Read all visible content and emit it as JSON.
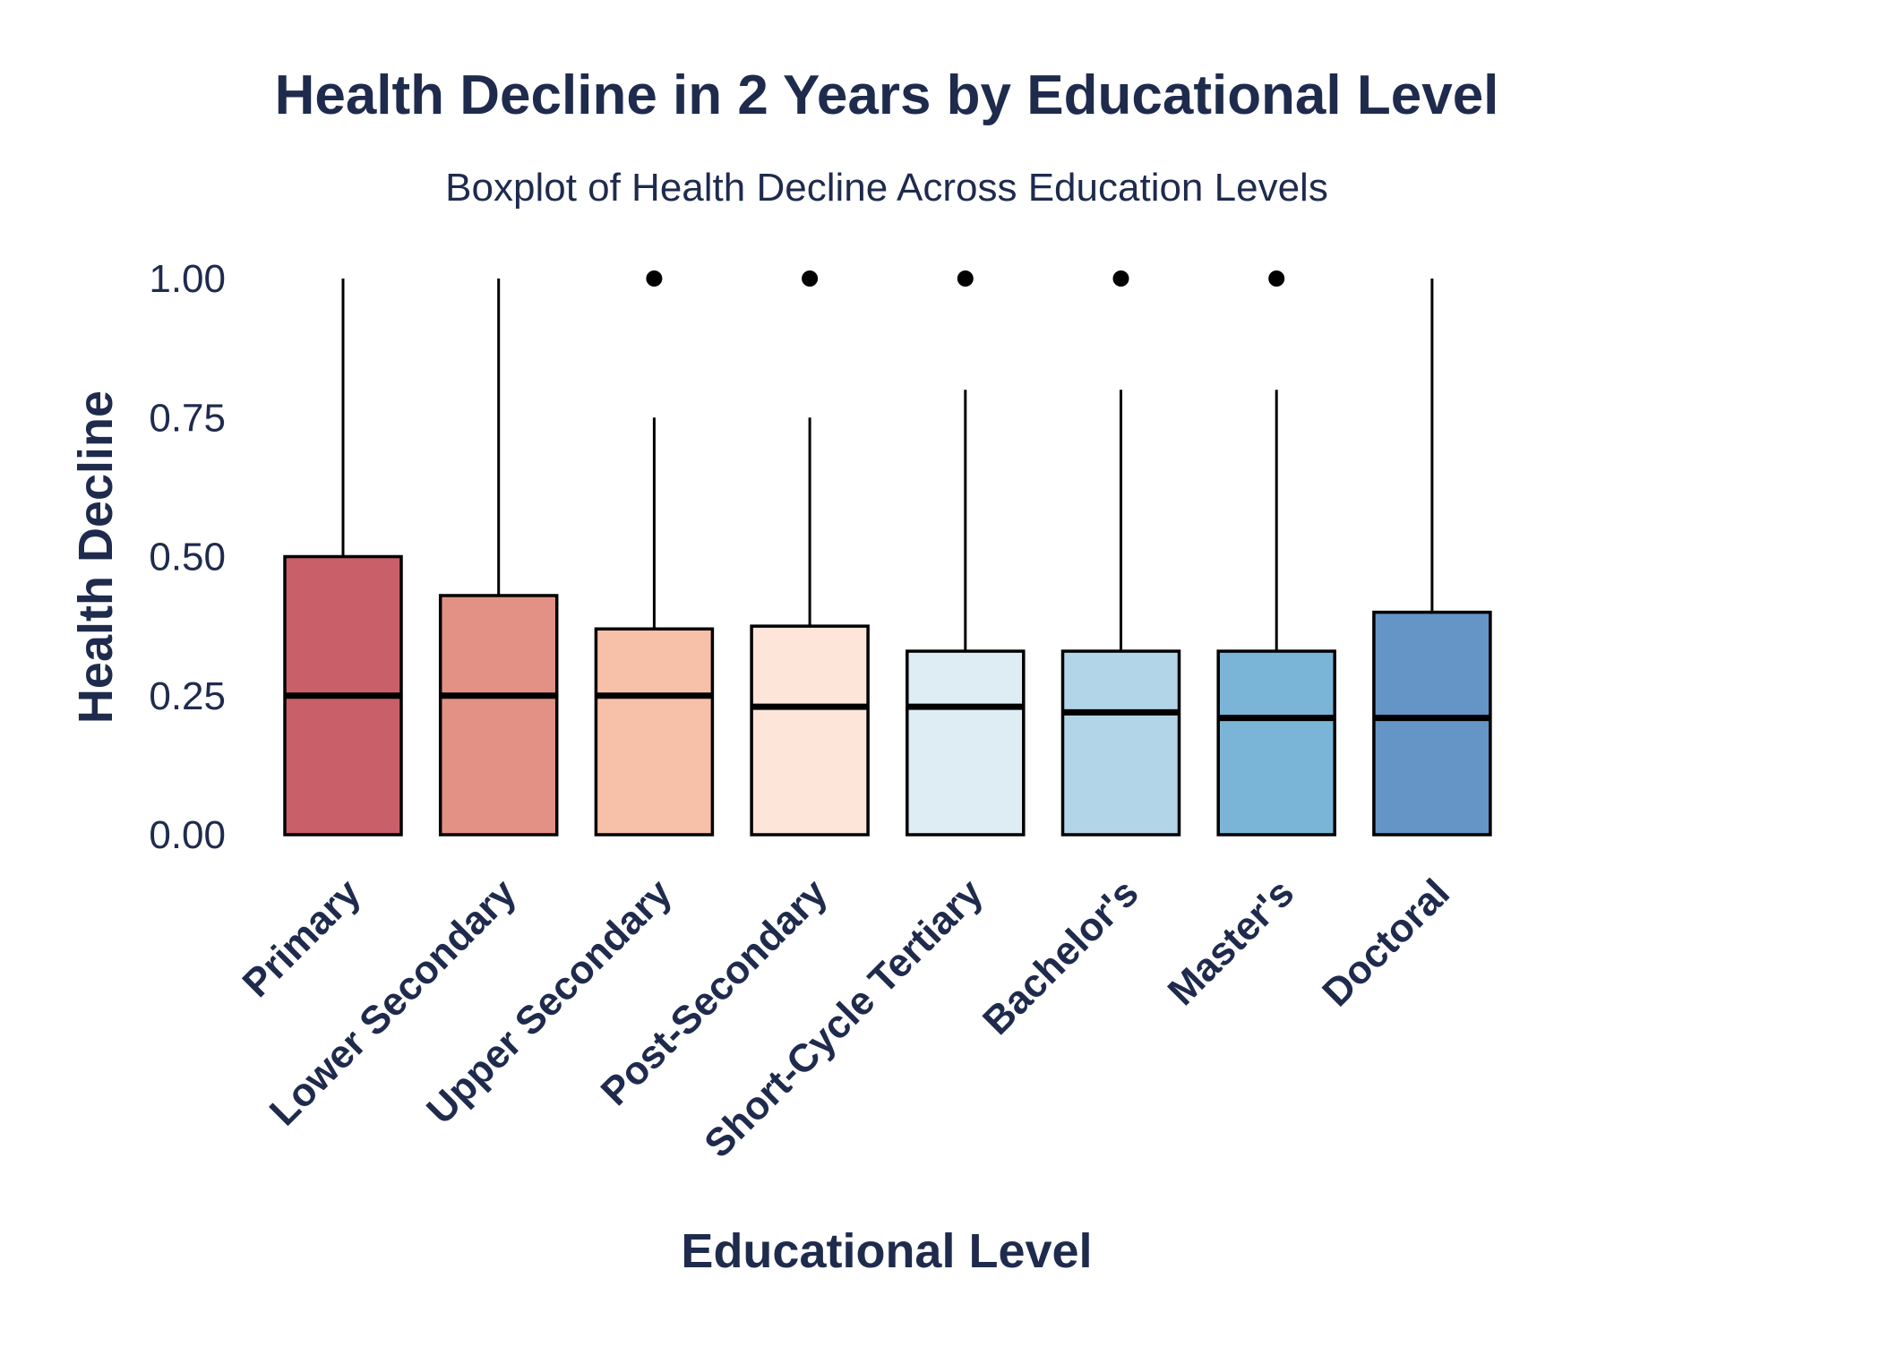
{
  "chart_data": {
    "type": "boxplot",
    "title": "Health Decline in 2 Years by Educational Level",
    "subtitle": "Boxplot of Health Decline Across Education Levels",
    "xlabel": "Educational Level",
    "ylabel": "Health Decline",
    "ylim": [
      -0.06,
      1.04
    ],
    "yticks": [
      0,
      0.25,
      0.5,
      0.75,
      1
    ],
    "ytick_labels": [
      "0.00",
      "0.25",
      "0.50",
      "0.75",
      "1.00"
    ],
    "grid": false,
    "legend": "none",
    "categories": [
      "Primary",
      "Lower Secondary",
      "Upper Secondary",
      "Post-Secondary",
      "Short-Cycle Tertiary",
      "Bachelor's",
      "Master's",
      "Doctoral"
    ],
    "boxes": [
      {
        "category": "Primary",
        "whisker_low": 0,
        "q1": 0,
        "median": 0.25,
        "q3": 0.5,
        "whisker_high": 1.0,
        "outliers": [],
        "color": "#c95f68"
      },
      {
        "category": "Lower Secondary",
        "whisker_low": 0,
        "q1": 0,
        "median": 0.25,
        "q3": 0.43,
        "whisker_high": 1.0,
        "outliers": [],
        "color": "#e39185"
      },
      {
        "category": "Upper Secondary",
        "whisker_low": 0,
        "q1": 0,
        "median": 0.25,
        "q3": 0.37,
        "whisker_high": 0.75,
        "outliers": [
          1
        ],
        "color": "#f7c0a8"
      },
      {
        "category": "Post-Secondary",
        "whisker_low": 0,
        "q1": 0,
        "median": 0.23,
        "q3": 0.375,
        "whisker_high": 0.75,
        "outliers": [
          1
        ],
        "color": "#fde5da"
      },
      {
        "category": "Short-Cycle Tertiary",
        "whisker_low": 0,
        "q1": 0,
        "median": 0.23,
        "q3": 0.33,
        "whisker_high": 0.8,
        "outliers": [
          1
        ],
        "color": "#deedf4"
      },
      {
        "category": "Bachelor's",
        "whisker_low": 0,
        "q1": 0,
        "median": 0.22,
        "q3": 0.33,
        "whisker_high": 0.8,
        "outliers": [
          1
        ],
        "color": "#b3d5e8"
      },
      {
        "category": "Master's",
        "whisker_low": 0,
        "q1": 0,
        "median": 0.21,
        "q3": 0.33,
        "whisker_high": 0.8,
        "outliers": [
          1
        ],
        "color": "#7ab4d6"
      },
      {
        "category": "Doctoral",
        "whisker_low": 0,
        "q1": 0,
        "median": 0.21,
        "q3": 0.4,
        "whisker_high": 1.0,
        "outliers": [],
        "color": "#6595c6"
      }
    ],
    "colors": {
      "text": "#1f2b4d",
      "outline": "#000000"
    }
  }
}
